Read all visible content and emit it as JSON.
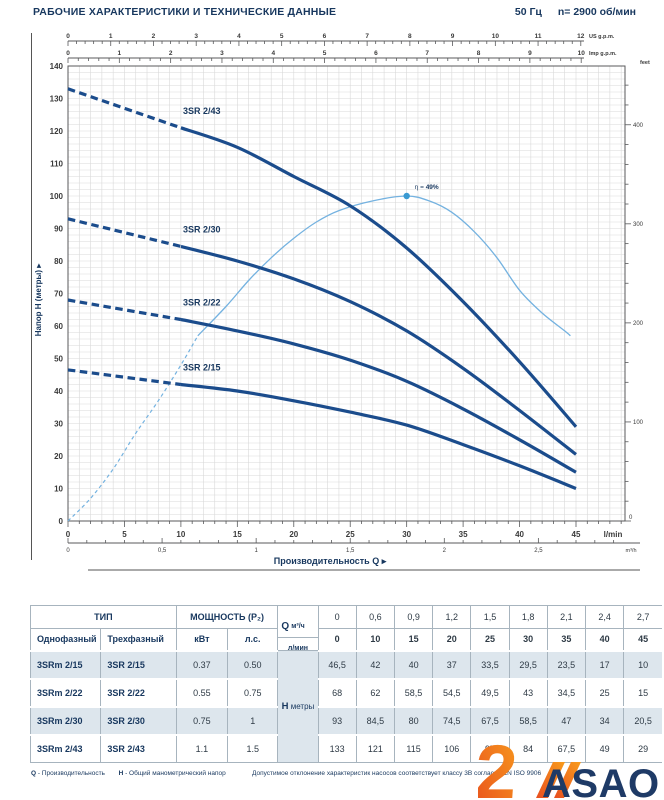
{
  "header": {
    "title": "РАБОЧИЕ ХАРАКТЕРИСТИКИ И ТЕХНИЧЕСКИЕ ДАННЫЕ",
    "frequency": "50 Гц",
    "speed": "n= 2900 об/мин"
  },
  "chart_data": {
    "type": "line",
    "xlabel": "Производительность Q",
    "ylabel": "Напор H (метры)",
    "x_axis_lmin": {
      "label": "l/min",
      "min": 0,
      "max": 45,
      "major": 5,
      "minor": 1
    },
    "x_axis_m3h": {
      "label": "m³/h",
      "ticks": [
        0,
        0.5,
        1,
        1.5,
        2,
        2.5
      ],
      "lmin_per_unit": 16.6667
    },
    "x_axis_usgpm": {
      "label": "US g.p.m.",
      "max": 12,
      "lmin_per_unit": 3.78541
    },
    "x_axis_impgpm": {
      "label": "Imp g.p.m.",
      "max": 10,
      "lmin_per_unit": 4.54609
    },
    "y_axis_m": {
      "label": "Напор H (метры)",
      "min": 0,
      "max": 140,
      "major": 10,
      "grid_step": 2
    },
    "y_axis_feet": {
      "label": "feet",
      "major": 100,
      "minor": 20,
      "m_per_foot": 0.3048
    },
    "x_lmin": [
      0,
      10,
      15,
      20,
      25,
      30,
      35,
      40,
      45
    ],
    "dashed_until_lmin": 10,
    "series": [
      {
        "name": "3SR 2/43",
        "values": [
          133,
          121,
          115,
          106,
          97,
          84,
          67.5,
          49,
          29
        ]
      },
      {
        "name": "3SR 2/30",
        "values": [
          93,
          84.5,
          80,
          74.5,
          67.5,
          58.5,
          47,
          34,
          20.5
        ]
      },
      {
        "name": "3SR 2/22",
        "values": [
          68,
          62,
          58.5,
          54.5,
          49.5,
          43,
          34.5,
          25,
          15
        ]
      },
      {
        "name": "3SR 2/15",
        "values": [
          46.5,
          42,
          40,
          37,
          33.5,
          29.5,
          23.5,
          17,
          10
        ]
      }
    ],
    "efficiency_curve": {
      "label_prefix": "η = ",
      "label_value": "49%",
      "dashed_until_lmin": 11.5,
      "x": [
        0,
        2,
        4,
        6,
        8,
        10,
        11.5,
        14,
        16,
        18,
        20,
        22,
        24,
        27,
        30,
        32,
        34,
        36,
        38,
        40,
        42,
        44,
        44.5
      ],
      "values": [
        0,
        7,
        16,
        27,
        37,
        48,
        57,
        66,
        74,
        81,
        87,
        92,
        95.5,
        98.5,
        100,
        98.5,
        95,
        89,
        81,
        71,
        64,
        58.5,
        57
      ],
      "peak": {
        "q": 30,
        "h": 100
      }
    },
    "colors": {
      "curve": "#1b4c8c",
      "efficiency": "#74b2e0",
      "efficiency_dot": "#3a9ad2",
      "grid": "#d9d9d9",
      "frame": "#58595b",
      "tick_text": "#3a3a3a",
      "label_navy": "#17375e"
    }
  },
  "table": {
    "type_header": "ТИП",
    "power_header": "МОЩНОСТЬ (P₂)",
    "col_single": "Однофазный",
    "col_three": "Трехфазный",
    "col_kw": "кВт",
    "col_hp": "л.с.",
    "q_label": "Q",
    "q_unit_m3h": "м³/ч",
    "q_unit_lmin": "л/мин",
    "h_label": "H",
    "h_unit": "метры",
    "q_m3h": [
      "0",
      "0,6",
      "0,9",
      "1,2",
      "1,5",
      "1,8",
      "2,1",
      "2,4",
      "2,7"
    ],
    "q_lmin": [
      "0",
      "10",
      "15",
      "20",
      "25",
      "30",
      "35",
      "40",
      "45"
    ],
    "rows": [
      {
        "single": "3SRm 2/15",
        "three": "3SR 2/15",
        "kw": "0.37",
        "hp": "0.50",
        "shaded": true,
        "h": [
          "46,5",
          "42",
          "40",
          "37",
          "33,5",
          "29,5",
          "23,5",
          "17",
          "10"
        ]
      },
      {
        "single": "3SRm 2/22",
        "three": "3SR 2/22",
        "kw": "0.55",
        "hp": "0.75",
        "shaded": false,
        "h": [
          "68",
          "62",
          "58,5",
          "54,5",
          "49,5",
          "43",
          "34,5",
          "25",
          "15"
        ]
      },
      {
        "single": "3SRm 2/30",
        "three": "3SR 2/30",
        "kw": "0.75",
        "hp": "1",
        "shaded": true,
        "h": [
          "93",
          "84,5",
          "80",
          "74,5",
          "67,5",
          "58,5",
          "47",
          "34",
          "20,5"
        ]
      },
      {
        "single": "3SRm 2/43",
        "three": "3SR 2/43",
        "kw": "1.1",
        "hp": "1.5",
        "shaded": false,
        "h": [
          "133",
          "121",
          "115",
          "106",
          "97",
          "84",
          "67,5",
          "49",
          "29"
        ]
      }
    ]
  },
  "footer": {
    "q_bold": "Q",
    "q_text": "- Производительность",
    "h_bold": "H",
    "h_text": "- Общий манометрический напор",
    "right_note": "Допустимое отклонение характеристик насосов соответствует классу 3B согласно EN ISO 9906"
  },
  "logo": {
    "mark": "2",
    "text": "ASAO",
    "orange_dark": "#e84e1f",
    "orange_light": "#f89c1c",
    "navy": "#1e3a66"
  }
}
